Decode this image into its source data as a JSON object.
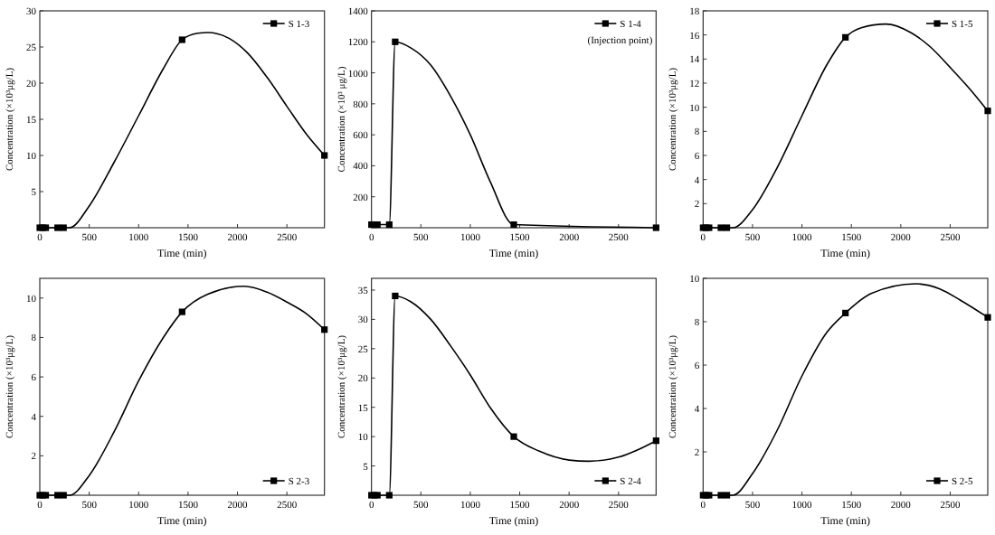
{
  "chart_data": [
    {
      "type": "line",
      "xlabel": "Time (min)",
      "ylabel": "Concentration (×10³μg/L)",
      "xlim": [
        0,
        2880
      ],
      "xticks": [
        0,
        500,
        1000,
        1500,
        2000,
        2500
      ],
      "ylim": [
        0,
        30
      ],
      "yticks": [
        5,
        10,
        15,
        20,
        25,
        30
      ],
      "legend": "top right",
      "series": [
        {
          "color": "#000000",
          "x": [
            0,
            30,
            60,
            180,
            240,
            300,
            500,
            750,
            1000,
            1250,
            1440,
            1600,
            1700,
            1900,
            2100,
            2300,
            2500,
            2700,
            2880
          ],
          "values": [
            0,
            0,
            0,
            0,
            0,
            0,
            3,
            9,
            15.5,
            22,
            26,
            26.9,
            27,
            26.3,
            24.2,
            20.8,
            16.8,
            12.9,
            10
          ]
        },
        {
          "type": "scatter",
          "name": "S 1-3",
          "marker": "square",
          "color": "#000000",
          "x": [
            0,
            30,
            60,
            180,
            240,
            1440,
            2880
          ],
          "values": [
            0,
            0,
            0,
            0,
            0,
            26,
            10
          ]
        }
      ]
    },
    {
      "type": "line",
      "xlabel": "Time (min)",
      "ylabel": "Concentration (×10³ μg/L)",
      "xlim": [
        0,
        2880
      ],
      "xticks": [
        0,
        500,
        1000,
        1500,
        2000,
        2500
      ],
      "ylim": [
        0,
        1400
      ],
      "yticks": [
        200,
        400,
        600,
        800,
        1000,
        1200,
        1400
      ],
      "legend": "top right",
      "annotations": [
        "(Injection point)"
      ],
      "series": [
        {
          "color": "#000000",
          "x": [
            0,
            30,
            60,
            180,
            240,
            400,
            600,
            800,
            1000,
            1200,
            1440,
            2880
          ],
          "values": [
            20,
            20,
            20,
            20,
            1200,
            1160,
            1050,
            850,
            600,
            300,
            20,
            0
          ]
        },
        {
          "type": "scatter",
          "name": "S 1-4",
          "marker": "square",
          "color": "#000000",
          "x": [
            0,
            30,
            60,
            180,
            240,
            1440,
            2880
          ],
          "values": [
            20,
            20,
            20,
            20,
            1200,
            20,
            0
          ]
        }
      ]
    },
    {
      "type": "line",
      "xlabel": "Time (min)",
      "ylabel": "Concentration (×10³μg/L)",
      "xlim": [
        0,
        2880
      ],
      "xticks": [
        0,
        500,
        1000,
        1500,
        2000,
        2500
      ],
      "ylim": [
        0,
        18
      ],
      "yticks": [
        2,
        4,
        6,
        8,
        10,
        12,
        14,
        16,
        18
      ],
      "legend": "top right",
      "series": [
        {
          "color": "#000000",
          "x": [
            0,
            30,
            60,
            180,
            240,
            300,
            500,
            750,
            1000,
            1250,
            1440,
            1600,
            1850,
            2100,
            2300,
            2500,
            2700,
            2880
          ],
          "values": [
            0,
            0,
            0,
            0,
            0,
            0,
            1.5,
            5,
            9.3,
            13.5,
            15.8,
            16.6,
            16.9,
            16.2,
            15,
            13.3,
            11.5,
            9.7
          ]
        },
        {
          "type": "scatter",
          "name": "S 1-5",
          "marker": "square",
          "color": "#000000",
          "x": [
            0,
            30,
            60,
            180,
            240,
            1440,
            2880
          ],
          "values": [
            0,
            0,
            0,
            0,
            0,
            15.8,
            9.7
          ]
        }
      ]
    },
    {
      "type": "line",
      "xlabel": "Time (min)",
      "ylabel": "Concentration (×10³μg/L)",
      "xlim": [
        0,
        2880
      ],
      "xticks": [
        0,
        500,
        1000,
        1500,
        2000,
        2500
      ],
      "ylim": [
        0,
        11
      ],
      "yticks": [
        2,
        4,
        6,
        8,
        10
      ],
      "legend": "bottom right",
      "series": [
        {
          "color": "#000000",
          "x": [
            0,
            30,
            60,
            180,
            240,
            300,
            500,
            750,
            1000,
            1250,
            1440,
            1700,
            2070,
            2300,
            2500,
            2700,
            2880
          ],
          "values": [
            0,
            0,
            0,
            0,
            0,
            0,
            1,
            3.2,
            5.8,
            8,
            9.3,
            10.2,
            10.6,
            10.3,
            9.8,
            9.2,
            8.4
          ]
        },
        {
          "type": "scatter",
          "name": "S 2-3",
          "marker": "square",
          "color": "#000000",
          "x": [
            0,
            30,
            60,
            180,
            240,
            1440,
            2880
          ],
          "values": [
            0,
            0,
            0,
            0,
            0,
            9.3,
            8.4
          ]
        }
      ]
    },
    {
      "type": "line",
      "xlabel": "Time (min)",
      "ylabel": "Concentration (×10³μg/L)",
      "xlim": [
        0,
        2880
      ],
      "xticks": [
        0,
        500,
        1000,
        1500,
        2000,
        2500
      ],
      "ylim": [
        0,
        37
      ],
      "yticks": [
        5,
        10,
        15,
        20,
        25,
        30,
        35
      ],
      "legend": "bottom right",
      "series": [
        {
          "color": "#000000",
          "x": [
            0,
            30,
            60,
            180,
            240,
            400,
            600,
            800,
            1000,
            1200,
            1440,
            1700,
            2000,
            2200,
            2500,
            2700,
            2880
          ],
          "values": [
            0,
            0,
            0,
            0,
            34,
            33,
            30,
            25.5,
            20.5,
            15,
            10,
            7.5,
            6,
            5.8,
            6.5,
            7.8,
            9.3
          ]
        },
        {
          "type": "scatter",
          "name": "S 2-4",
          "marker": "square",
          "color": "#000000",
          "x": [
            0,
            30,
            60,
            180,
            240,
            1440,
            2880
          ],
          "values": [
            0,
            0,
            0,
            0,
            34,
            10,
            9.3
          ]
        }
      ]
    },
    {
      "type": "line",
      "xlabel": "Time (min)",
      "ylabel": "Concentration (×10³μg/L)",
      "xlim": [
        0,
        2880
      ],
      "xticks": [
        0,
        500,
        1000,
        1500,
        2000,
        2500
      ],
      "ylim": [
        0,
        10
      ],
      "yticks": [
        2,
        4,
        6,
        8,
        10
      ],
      "legend": "bottom right",
      "series": [
        {
          "color": "#000000",
          "x": [
            0,
            30,
            60,
            180,
            240,
            300,
            500,
            750,
            1000,
            1250,
            1440,
            1700,
            2150,
            2400,
            2600,
            2880
          ],
          "values": [
            0,
            0,
            0,
            0,
            0,
            0,
            1,
            3,
            5.5,
            7.5,
            8.4,
            9.3,
            9.75,
            9.5,
            9,
            8.2
          ]
        },
        {
          "type": "scatter",
          "name": "S 2-5",
          "marker": "square",
          "color": "#000000",
          "x": [
            0,
            30,
            60,
            180,
            240,
            1440,
            2880
          ],
          "values": [
            0,
            0,
            0,
            0,
            0,
            8.4,
            8.2
          ]
        }
      ]
    }
  ]
}
